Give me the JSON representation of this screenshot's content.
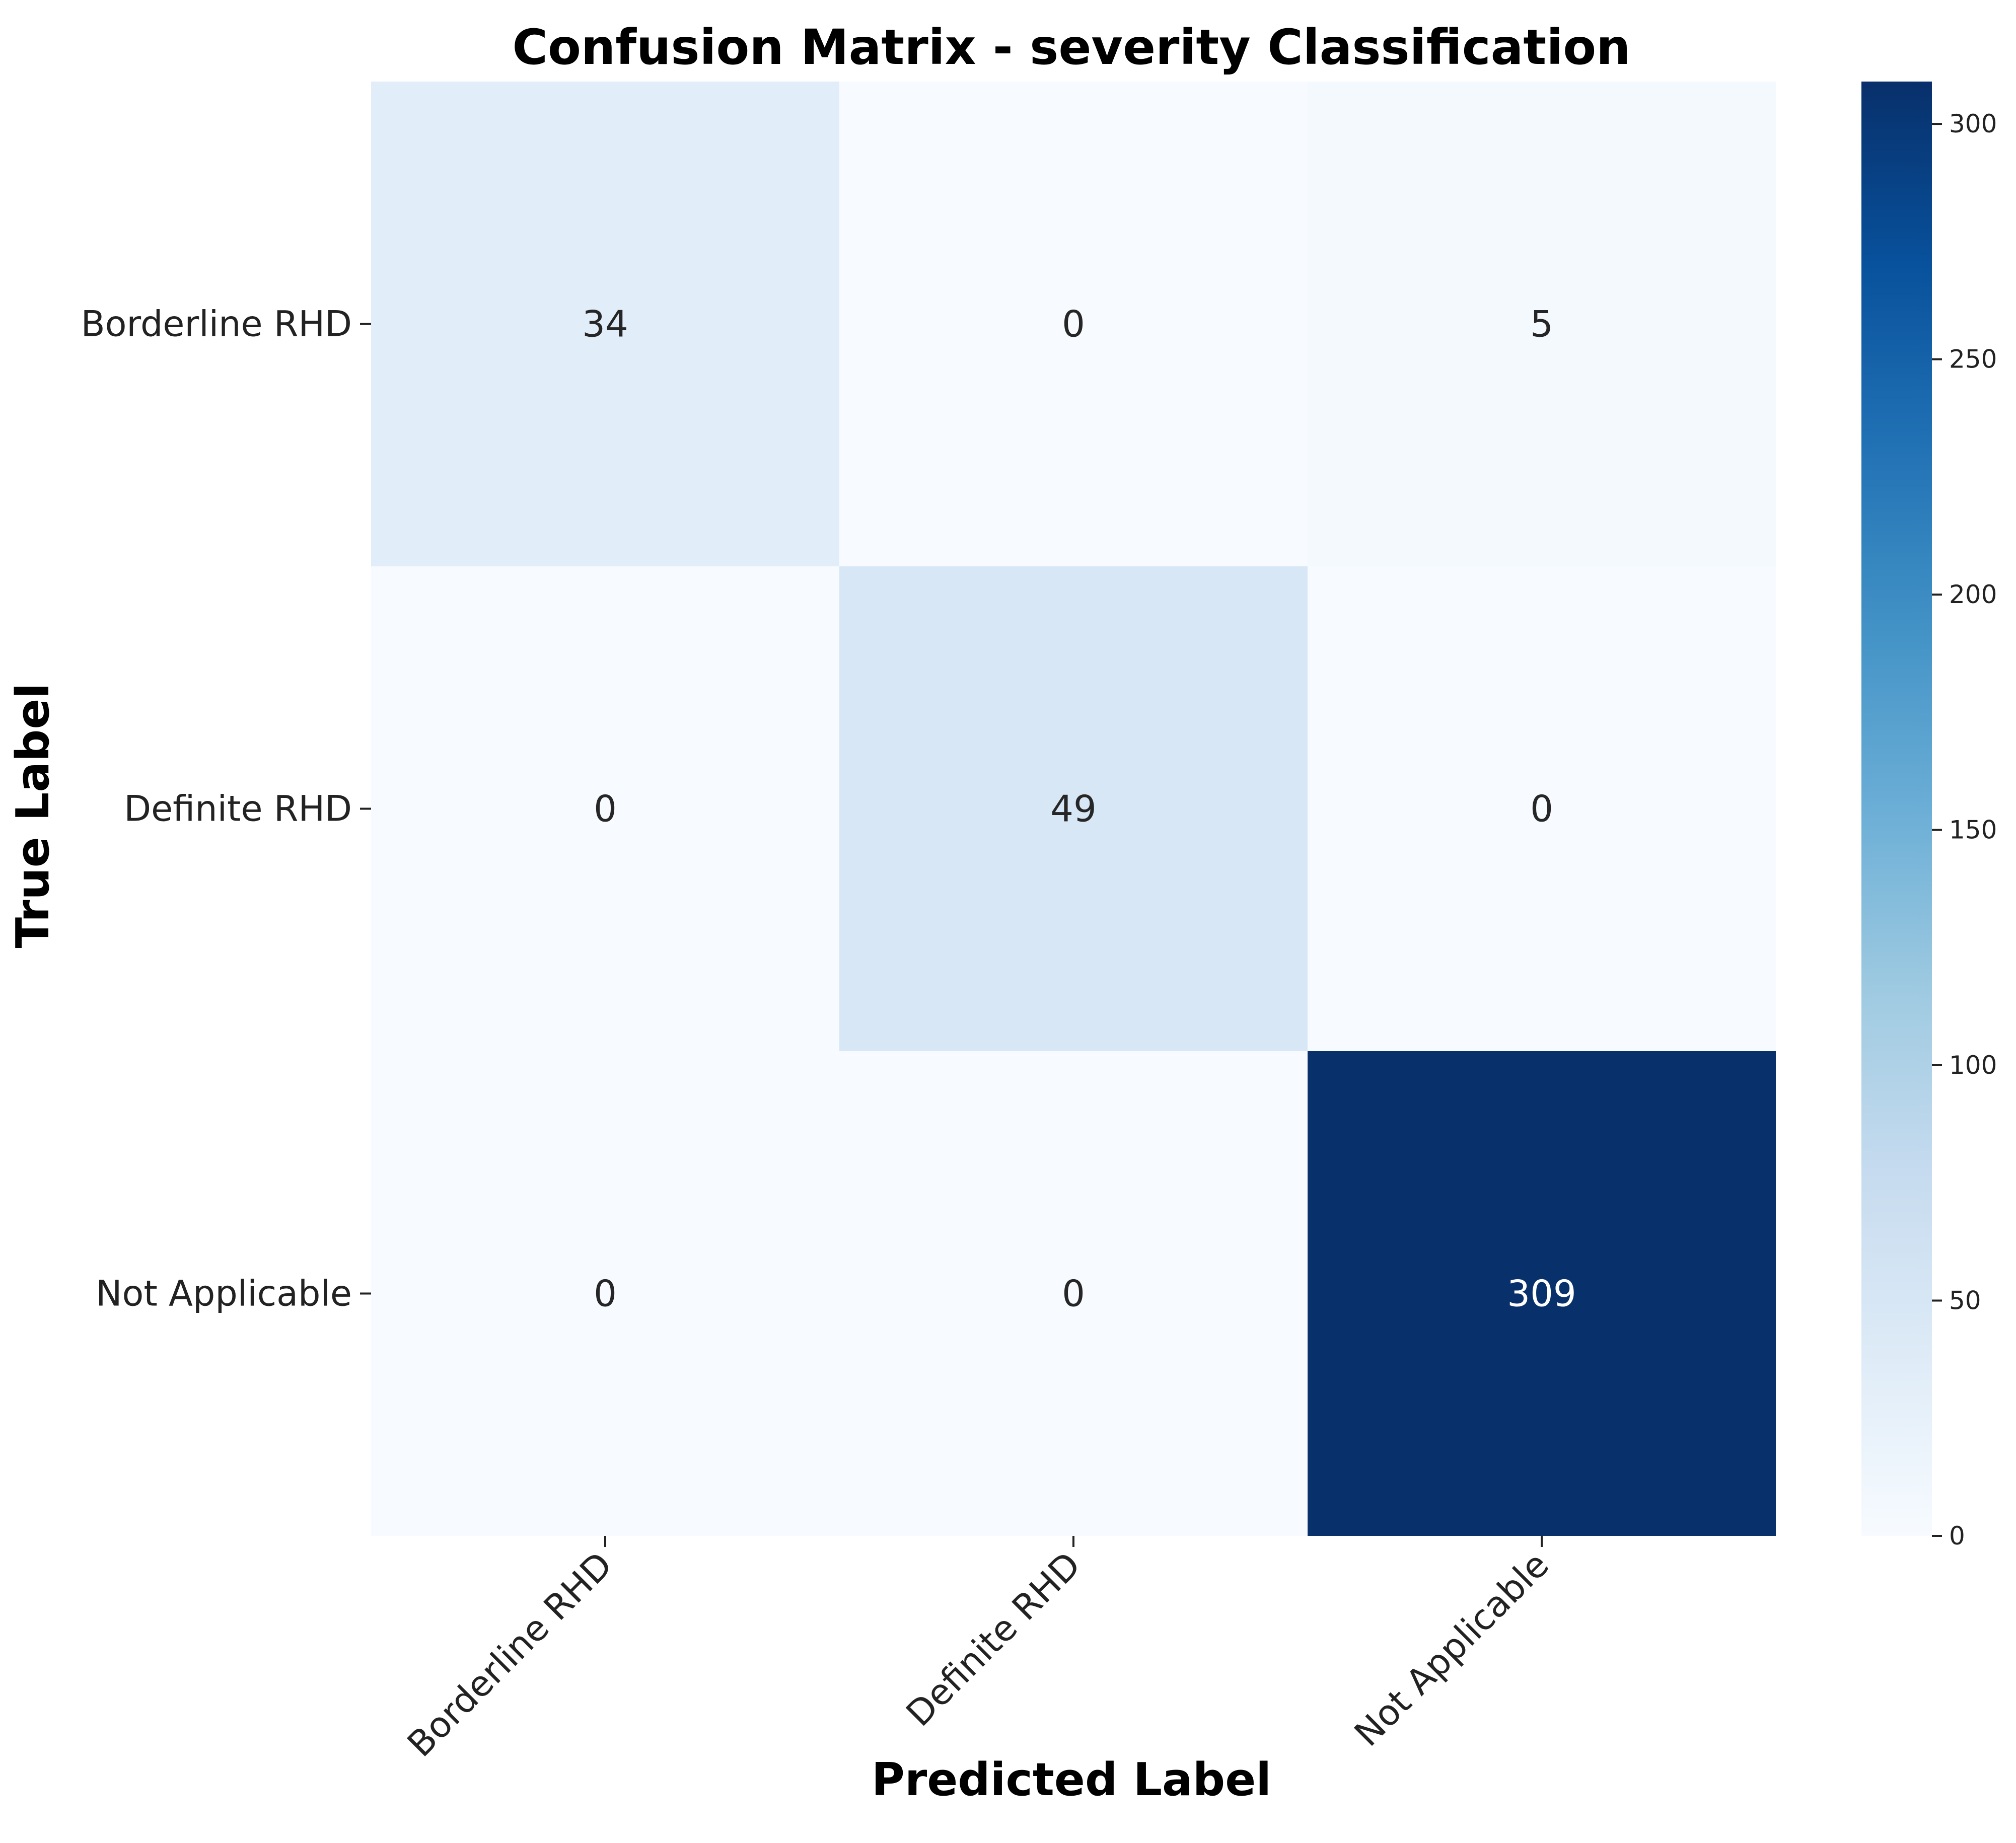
{
  "chart_data": {
    "type": "heatmap",
    "title": "Confusion Matrix - severity Classification",
    "xlabel": "Predicted Label",
    "ylabel": "True Label",
    "x_categories": [
      "Borderline RHD",
      "Definite RHD",
      "Not Applicable"
    ],
    "y_categories": [
      "Borderline RHD",
      "Definite RHD",
      "Not Applicable"
    ],
    "values": [
      [
        34,
        0,
        5
      ],
      [
        0,
        49,
        0
      ],
      [
        0,
        0,
        309
      ]
    ],
    "colormap": "Blues",
    "colorbar": {
      "range": [
        0,
        309
      ],
      "ticks": [
        0,
        50,
        100,
        150,
        200,
        250,
        300
      ]
    }
  }
}
